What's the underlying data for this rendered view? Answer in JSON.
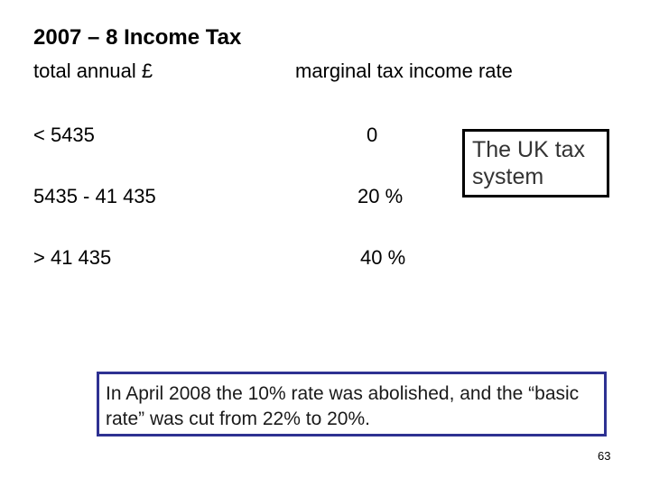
{
  "title": "2007 – 8  Income Tax",
  "headers": {
    "income": "total annual £",
    "rate": "marginal tax income rate"
  },
  "rows": [
    {
      "income": "< 5435",
      "rate": "0"
    },
    {
      "income": "5435  - 41 435",
      "rate": "20 %"
    },
    {
      "income": "> 41 435",
      "rate": "40 %"
    }
  ],
  "callout": "The UK tax system",
  "note": "In April 2008 the 10% rate was abolished, and the “basic rate” was cut from 22% to 20%.",
  "page_number": "63",
  "colors": {
    "note_border": "#2e3192",
    "callout_border": "#000000"
  }
}
